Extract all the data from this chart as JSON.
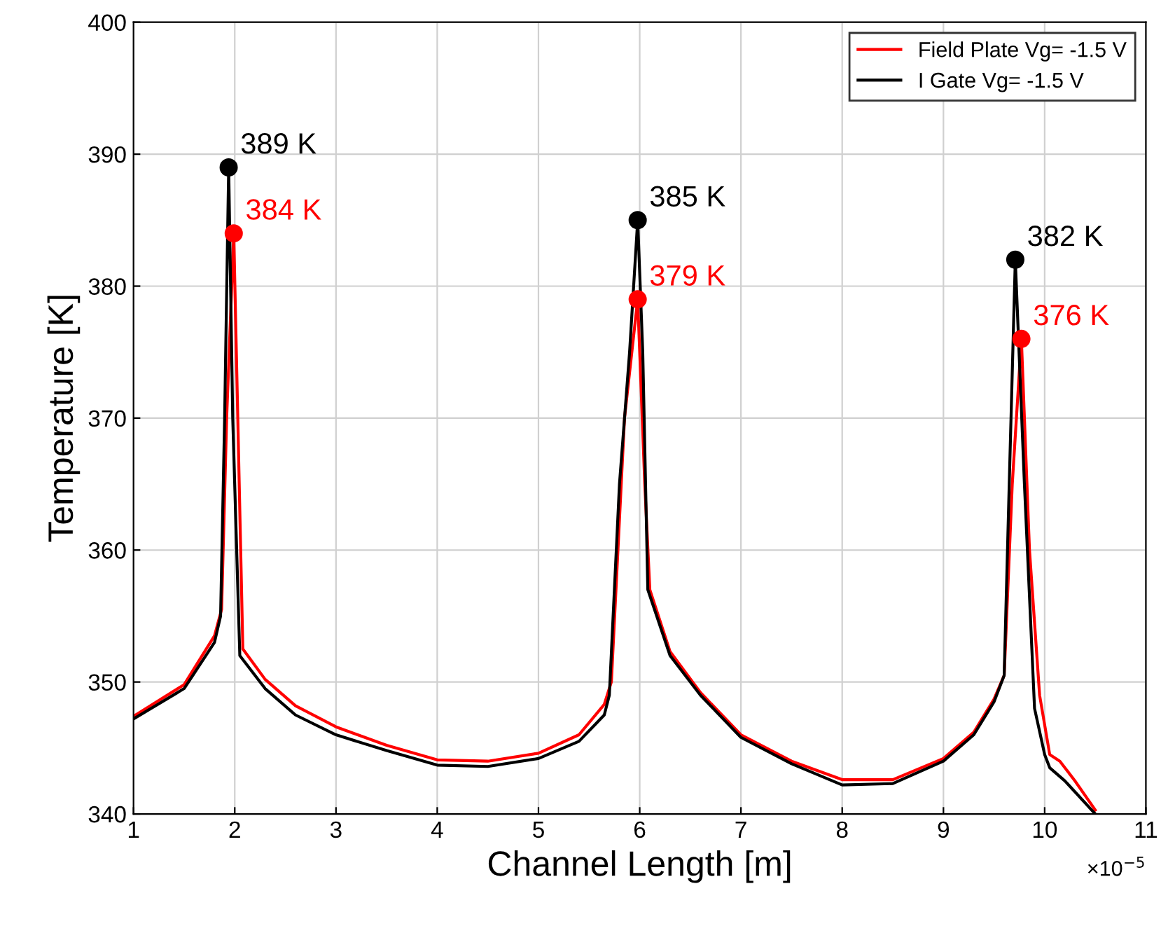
{
  "chart_data": {
    "type": "line",
    "xlabel": "Channel Length [m]",
    "ylabel": "Temperature [K]",
    "xlim": [
      1,
      11
    ],
    "xticks": [
      1,
      2,
      3,
      4,
      5,
      6,
      7,
      8,
      9,
      10,
      11
    ],
    "ylim": [
      340,
      400
    ],
    "yticks": [
      340,
      350,
      360,
      370,
      380,
      390,
      400
    ],
    "grid": true,
    "legend": "top right",
    "line_style": "solid",
    "marker": "none",
    "annotations": [
      "×10$^{−5}$"
    ],
    "series": [
      {
        "name": "Field Plate Vg= -1.5 V",
        "color": "#ff0000",
        "x": [
          1.0,
          1.5,
          1.8,
          1.87,
          1.92,
          1.99,
          2.03,
          2.08,
          2.3,
          2.6,
          3.0,
          3.5,
          4.0,
          4.5,
          5.0,
          5.4,
          5.65,
          5.72,
          5.85,
          5.98,
          6.05,
          6.1,
          6.3,
          6.6,
          7.0,
          7.5,
          8.0,
          8.5,
          9.0,
          9.3,
          9.5,
          9.6,
          9.68,
          9.77,
          9.85,
          9.95,
          10.05,
          10.15,
          10.3,
          10.5
        ],
        "values": [
          347.4,
          349.8,
          353.5,
          355.5,
          370,
          384,
          370,
          352.5,
          350.2,
          348.2,
          346.6,
          345.2,
          344.1,
          344.0,
          344.6,
          346.0,
          348.3,
          350,
          370,
          379,
          365,
          357,
          352.3,
          349.2,
          346.0,
          344.0,
          342.6,
          342.6,
          344.2,
          346.2,
          348.7,
          350.5,
          365,
          376,
          360,
          349,
          344.5,
          344.0,
          342.5,
          340.3
        ]
      },
      {
        "name": "I Gate Vg= -1.5 V",
        "color": "#000000",
        "x": [
          1.0,
          1.5,
          1.8,
          1.86,
          1.9,
          1.94,
          1.98,
          2.05,
          2.3,
          2.6,
          3.0,
          3.5,
          4.0,
          4.5,
          5.0,
          5.4,
          5.65,
          5.7,
          5.8,
          5.9,
          5.98,
          6.03,
          6.08,
          6.3,
          6.6,
          7.0,
          7.5,
          8.0,
          8.5,
          9.0,
          9.3,
          9.5,
          9.6,
          9.65,
          9.71,
          9.8,
          9.9,
          10.0,
          10.05,
          10.2,
          10.5
        ],
        "values": [
          347.2,
          349.5,
          353,
          355,
          370,
          389,
          370,
          352,
          349.5,
          347.5,
          346.0,
          344.8,
          343.7,
          343.6,
          344.2,
          345.5,
          347.5,
          349,
          365,
          375,
          385,
          375,
          357,
          352,
          349,
          345.8,
          343.8,
          342.2,
          342.3,
          344.0,
          346.0,
          348.5,
          350.5,
          365,
          382,
          365,
          348,
          344.5,
          343.5,
          342.5,
          340
        ]
      },
      {
        "type": "scatter",
        "color": "#000000",
        "marker": "circle",
        "x": [
          1.94,
          5.98,
          9.71
        ],
        "values": [
          389,
          385,
          382
        ],
        "value_labels": [
          "389 K",
          "385 K",
          "382 K"
        ]
      },
      {
        "type": "scatter",
        "color": "#ff0000",
        "marker": "circle",
        "x": [
          1.99,
          5.98,
          9.77
        ],
        "values": [
          384,
          379,
          376
        ],
        "value_labels": [
          "384 K",
          "379 K",
          "376 K"
        ]
      }
    ]
  }
}
